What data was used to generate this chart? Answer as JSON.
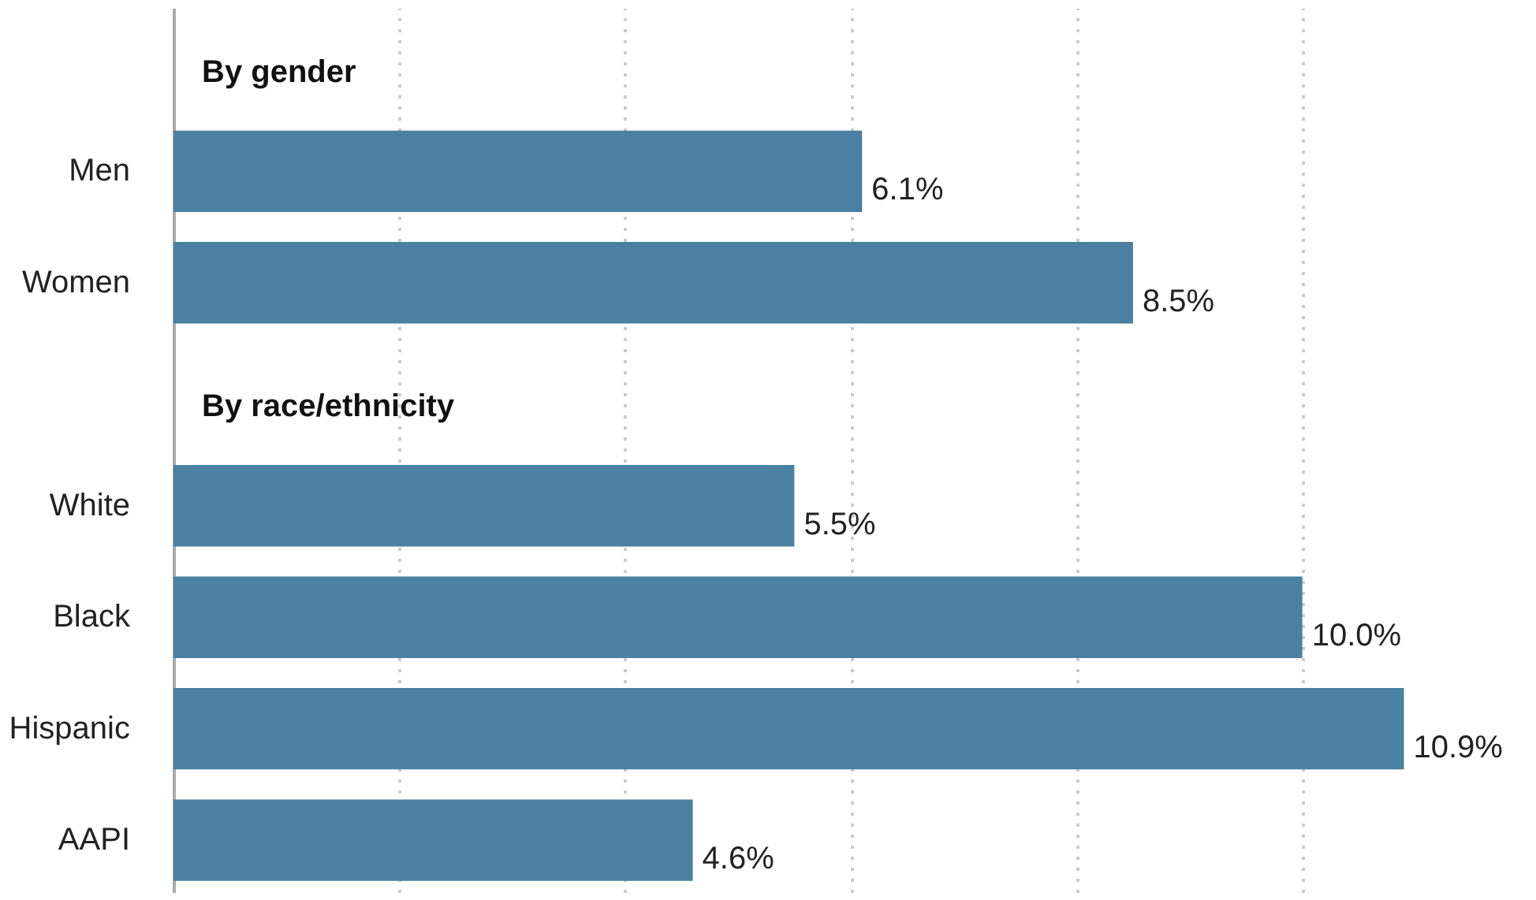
{
  "chart_data": {
    "type": "bar",
    "orientation": "horizontal",
    "categories": [
      null,
      "Men",
      "Women",
      null,
      "White",
      "Black",
      "Hispanic",
      "AAPI"
    ],
    "values": [
      null,
      6.1,
      8.5,
      null,
      5.5,
      10.0,
      10.9,
      4.6
    ],
    "value_labels": [
      null,
      "6.1%",
      "8.5%",
      null,
      "5.5%",
      "10.0%",
      "10.9%",
      "4.6%"
    ],
    "color": "#4a80a1",
    "annotations": [
      "By gender",
      "By race/ethnicity"
    ],
    "xlim": [
      0,
      12
    ],
    "xticks": [
      {
        "value": 2,
        "label": null
      },
      {
        "value": 4,
        "label": null
      },
      {
        "value": 6,
        "label": null
      },
      {
        "value": 8,
        "label": null
      },
      {
        "value": 10,
        "label": null
      }
    ],
    "grid": "x",
    "tick_labels": "y"
  }
}
